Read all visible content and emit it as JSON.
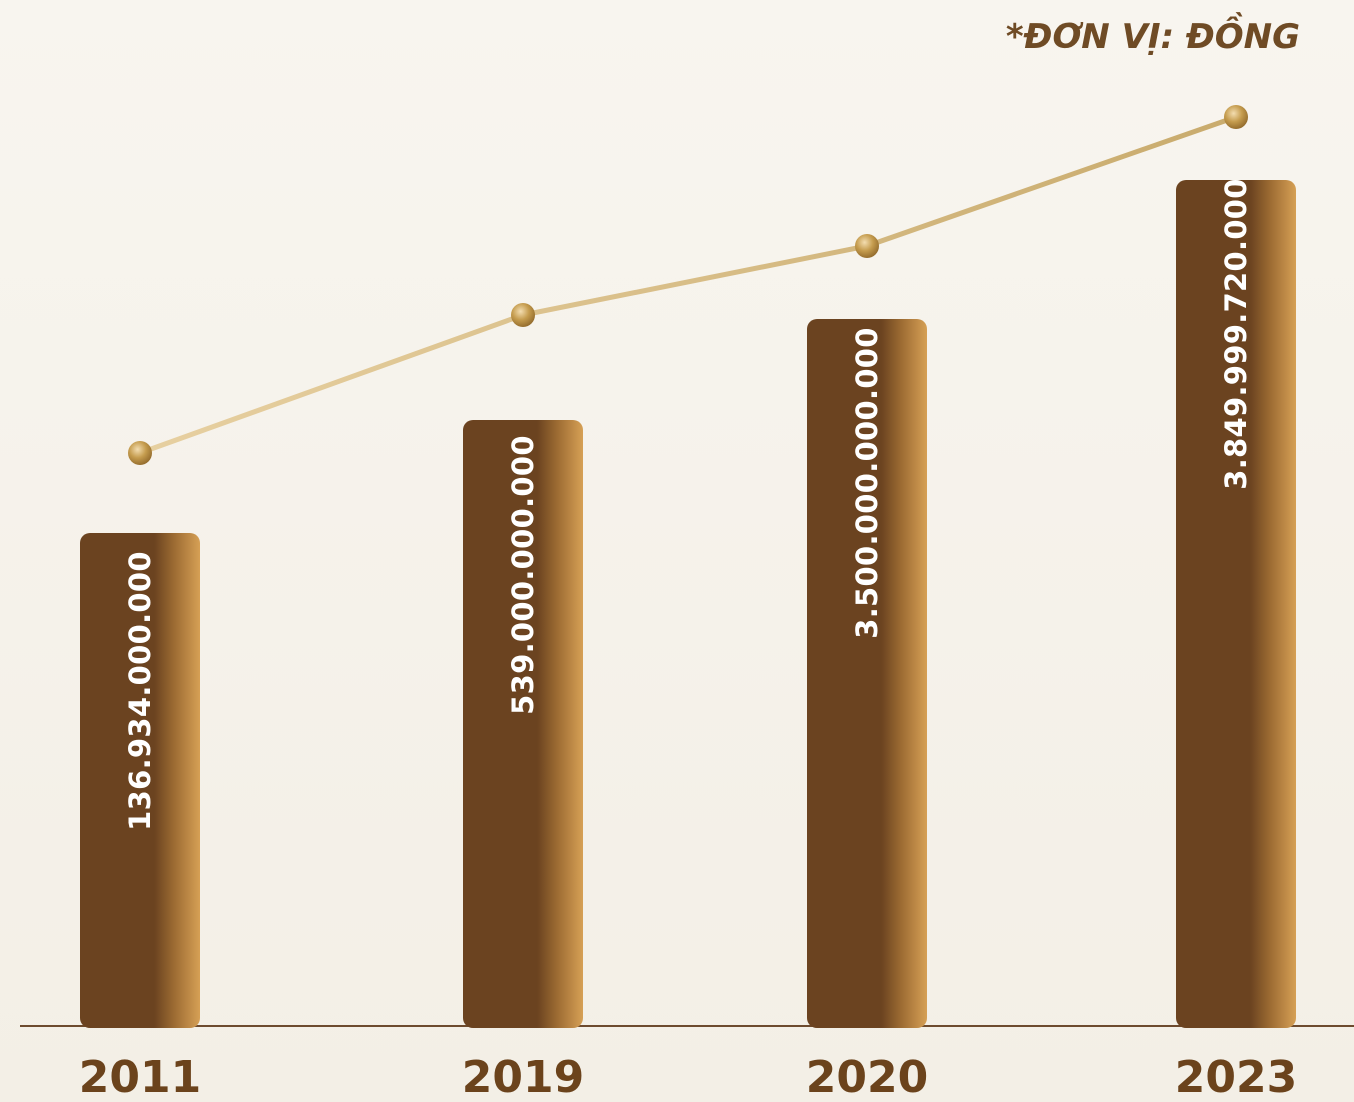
{
  "unit_note": "*ĐƠN VỊ: ĐỒNG",
  "colors": {
    "bar_dark": "#6b4320",
    "bar_light": "#d6a055",
    "line": "#d8c08d",
    "axis": "#6d4b2e",
    "text": "#6b431c",
    "point": "#c49a4c"
  },
  "chart_data": {
    "type": "bar",
    "categories": [
      "2011",
      "2019",
      "2020",
      "2023"
    ],
    "values": [
      136934000000,
      539000000000,
      3500000000000,
      3849999720000
    ],
    "value_labels": [
      "136.934.000.000",
      "539.000.000.000",
      "3.500.000.000.000",
      "3.849.999.720.000"
    ],
    "unit_note": "*ĐƠN VỊ: ĐỒNG",
    "trend_line": true,
    "grid": false,
    "legend": "none"
  }
}
